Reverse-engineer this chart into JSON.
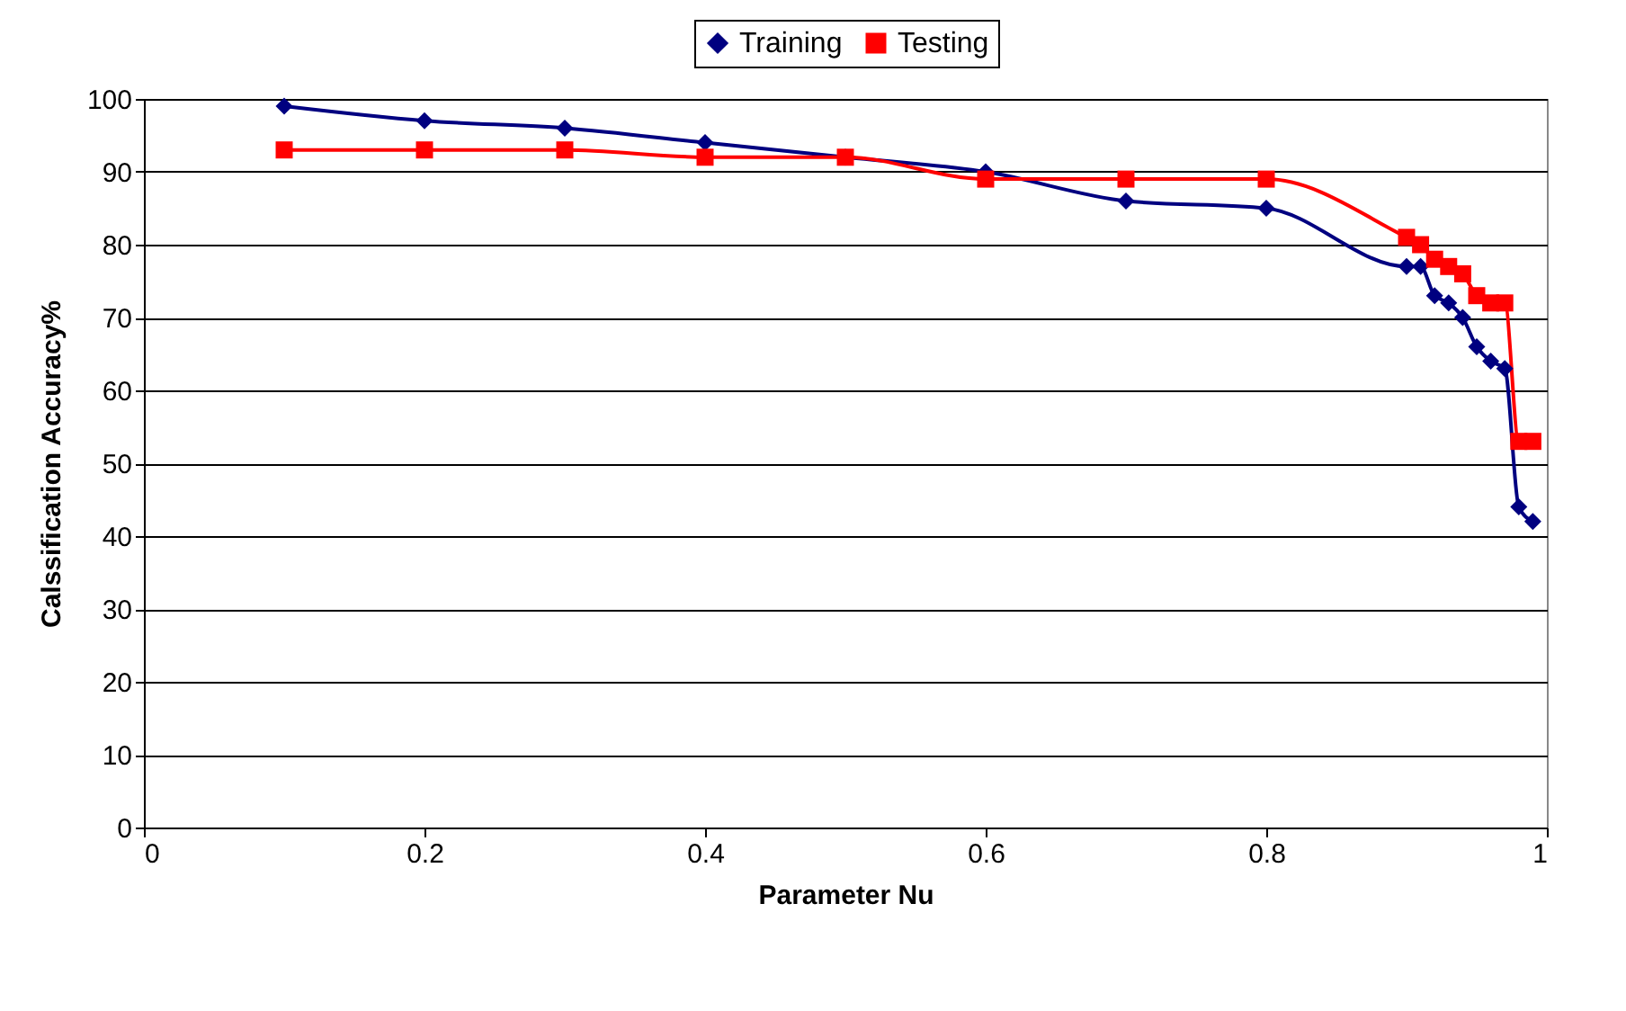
{
  "chart_data": {
    "type": "line",
    "xlabel": "Parameter Nu",
    "ylabel": "Calssification Accuracy%",
    "x": [
      0.1,
      0.2,
      0.3,
      0.4,
      0.5,
      0.6,
      0.7,
      0.8,
      0.9,
      0.91,
      0.92,
      0.93,
      0.94,
      0.95,
      0.96,
      0.97,
      0.98,
      0.99
    ],
    "series": [
      {
        "name": "Training",
        "color": "#000080",
        "marker": "diamond",
        "values": [
          99,
          97,
          96,
          94,
          92,
          90,
          86,
          85,
          77,
          77,
          73,
          72,
          70,
          66,
          64,
          63,
          44,
          42
        ]
      },
      {
        "name": "Testing",
        "color": "#ff0000",
        "marker": "square",
        "values": [
          93,
          93,
          93,
          92,
          92,
          89,
          89,
          89,
          81,
          80,
          78,
          77,
          76,
          73,
          72,
          72,
          53,
          53
        ]
      }
    ],
    "xlim": [
      0,
      1
    ],
    "xticks": [
      0,
      0.2,
      0.4,
      0.6,
      0.8,
      1
    ],
    "ylim": [
      0,
      100
    ],
    "yticks": [
      0,
      10,
      20,
      30,
      40,
      50,
      60,
      70,
      80,
      90,
      100
    ],
    "grid": "y",
    "legend": "top",
    "line_style": "solid"
  }
}
